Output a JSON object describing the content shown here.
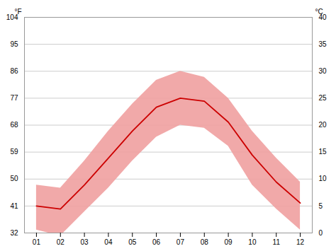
{
  "chart_data": {
    "type": "line",
    "x": [
      1,
      2,
      3,
      4,
      5,
      6,
      7,
      8,
      9,
      10,
      11,
      12
    ],
    "xlim": [
      0.5,
      12.5
    ],
    "xticks": [
      {
        "value": 1,
        "label": "01"
      },
      {
        "value": 2,
        "label": "02"
      },
      {
        "value": 3,
        "label": "03"
      },
      {
        "value": 4,
        "label": "04"
      },
      {
        "value": 5,
        "label": "05"
      },
      {
        "value": 6,
        "label": "06"
      },
      {
        "value": 7,
        "label": "07"
      },
      {
        "value": 8,
        "label": "08"
      },
      {
        "value": 9,
        "label": "09"
      },
      {
        "value": 10,
        "label": "10"
      },
      {
        "value": 11,
        "label": "11"
      },
      {
        "value": 12,
        "label": "12"
      }
    ],
    "ylim": [
      32,
      104
    ],
    "yticks": [
      32,
      41,
      50,
      59,
      68,
      77,
      86,
      95,
      104
    ],
    "y_label": "°F",
    "y2lim": [
      0,
      40
    ],
    "y2ticks": [
      0,
      5,
      10,
      15,
      20,
      25,
      30,
      35,
      40
    ],
    "y2_label": "°C",
    "grid": true,
    "series": [
      {
        "type": "area",
        "color": "#f0a0a0",
        "low": [
          33,
          31,
          39,
          47,
          56,
          64,
          68,
          67,
          61,
          48,
          40,
          33
        ],
        "high": [
          48,
          47,
          56,
          66,
          75,
          83,
          86,
          84,
          77,
          66,
          57,
          49
        ]
      },
      {
        "type": "line",
        "color": "#cc0000",
        "values": [
          41,
          40,
          48,
          57,
          66,
          74,
          77,
          76,
          69,
          58,
          49,
          42
        ]
      }
    ]
  }
}
